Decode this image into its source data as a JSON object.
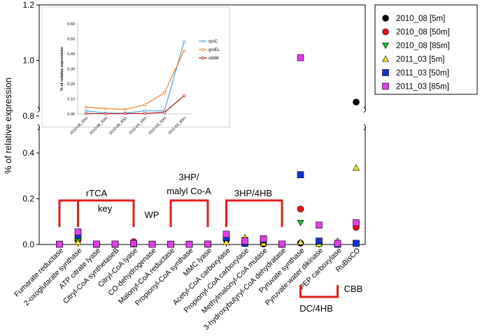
{
  "chart_data": {
    "type": "scatter",
    "ylabel": "% of relative expression",
    "y_ticks": [
      "0.0",
      "0.2",
      "0.4",
      "0.8",
      "1.0",
      "1.2"
    ],
    "y_ranges": {
      "lower": [
        0,
        0.45
      ],
      "upper": [
        0.8,
        1.2
      ]
    },
    "categories": [
      "Fumarate reductase",
      "2-oxoglutarate synthase",
      "ATP citrate lyase",
      "Citryl-CoA synthetaseB",
      "Citryl-CoA lyase",
      "CO-dehydrogenase",
      "Malonyl-CoA reductase",
      "Propionyl-CoA synthase",
      "MMC lyase",
      "Acetyl-CoA carboxylase",
      "Propionyl-CoA carboxylase",
      "Methylmalonyl-CoA mutase",
      "3-hydroxybutyryl-CoA dehydratase",
      "Pyruvate synthase",
      "Pyruvate:water dikinase",
      "PEP carboxylase",
      "RuBisCO"
    ],
    "series": [
      {
        "name": "2010_08 [5m]",
        "marker": "circle",
        "color": "#000000",
        "values": [
          0.001,
          0.02,
          0.001,
          0.001,
          0.002,
          0.001,
          0.001,
          0.001,
          0.001,
          0.02,
          0.004,
          0.002,
          0.001,
          0.006,
          0.003,
          0.001,
          0.85
        ]
      },
      {
        "name": "2010_08 [50m]",
        "marker": "circle",
        "color": "#e8121b",
        "values": [
          0.001,
          0.02,
          0.001,
          0.001,
          0.012,
          0.001,
          0.001,
          0.001,
          0.001,
          0.025,
          0.008,
          0.003,
          0.001,
          0.155,
          0.003,
          0.001,
          0.075
        ]
      },
      {
        "name": "2010_08 [85m]",
        "marker": "triangle-down",
        "color": "#1fbf2e",
        "values": [
          0.001,
          0.015,
          0.001,
          0.001,
          0.005,
          0.001,
          0.001,
          0.001,
          0.001,
          0.03,
          0.02,
          0.005,
          0.001,
          0.095,
          0.005,
          0.001,
          0.004
        ]
      },
      {
        "name": "2011_03 [5m]",
        "marker": "triangle-up",
        "color": "#f2ea2e",
        "values": [
          0.001,
          0.01,
          0.001,
          0.001,
          0.003,
          0.001,
          0.001,
          0.001,
          0.001,
          0.01,
          0.03,
          0.005,
          0.001,
          0.01,
          0.002,
          0.015,
          0.335
        ]
      },
      {
        "name": "2011_03 [50m]",
        "marker": "square",
        "color": "#1530d1",
        "values": [
          0.001,
          0.04,
          0.001,
          0.001,
          0.003,
          0.001,
          0.001,
          0.001,
          0.002,
          0.03,
          0.005,
          0.02,
          0.001,
          0.305,
          0.015,
          0.001,
          0.005
        ]
      },
      {
        "name": "2011_03 [85m]",
        "marker": "square",
        "color": "#e03ee8",
        "values": [
          0.001,
          0.055,
          0.002,
          0.002,
          0.004,
          0.001,
          0.001,
          0.001,
          0.002,
          0.045,
          0.015,
          0.025,
          0.002,
          1.01,
          0.085,
          0.005,
          0.095
        ]
      }
    ],
    "groups": [
      {
        "label": "rTCA"
      },
      {
        "label": "key"
      },
      {
        "label": "WP"
      },
      {
        "label": "3HP/"
      },
      {
        "label": "malyl Co-A"
      },
      {
        "label": "3HP/4HB"
      },
      {
        "label": "CBB"
      },
      {
        "label": "DC/4HB"
      }
    ],
    "legend_position": "top-right",
    "inset": {
      "type": "line",
      "ylabel": "% of relative expression",
      "y_ticks": [
        "0,00",
        "0,10",
        "0,20",
        "0,30",
        "0,40",
        "0,50",
        "0,60"
      ],
      "ylim": [
        0,
        0.6
      ],
      "categories": [
        "2010-08_05m",
        "2010-08_50m",
        "2010-08_85m",
        "2011-03_05m",
        "2011-03_50m",
        "2011-03_85m"
      ],
      "series": [
        {
          "name": "rpoC",
          "color": "#4aa6d6",
          "values": [
            0.02,
            0.005,
            0.005,
            0.02,
            0.02,
            0.48
          ]
        },
        {
          "name": "groEL",
          "color": "#ee7d2e",
          "values": [
            0.045,
            0.035,
            0.03,
            0.06,
            0.14,
            0.42
          ]
        },
        {
          "name": "cbbM",
          "color": "#c0151b",
          "values": [
            0.002,
            0.002,
            0.002,
            0.003,
            0.01,
            0.12
          ]
        }
      ]
    }
  }
}
